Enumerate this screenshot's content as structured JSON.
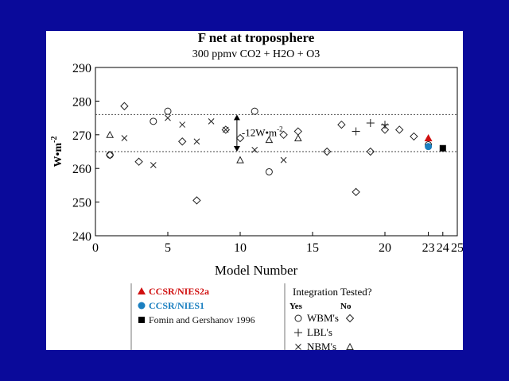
{
  "colors": {
    "slide_background": "#0a0a9a",
    "panel": "#ffffff",
    "ccsr_nies2a": "#d01010",
    "ccsr_nies1": "#1a7fc0",
    "fomin": "#000000",
    "marker": "#222222"
  },
  "chart_data": {
    "type": "scatter",
    "title": "F net at troposphere",
    "subtitle": "300 ppmv CO2 + H2O + O3",
    "xlabel": "Model Number",
    "ylabel_main": "W•m",
    "ylabel_exp": "-2",
    "xlim": [
      0,
      25
    ],
    "ylim": [
      240,
      290
    ],
    "x_ticks": [
      0,
      5,
      10,
      15,
      20,
      23,
      24,
      25
    ],
    "y_ticks": [
      240,
      250,
      260,
      270,
      280,
      290
    ],
    "grid": false,
    "reference_lines": [
      276,
      265
    ],
    "range_annotation": {
      "text": "-12W•m",
      "exp": "-2",
      "x": 9.5,
      "y_from": 276,
      "y_to": 265
    },
    "series": [
      {
        "name": "WBM's",
        "integration_tested": "Yes",
        "symbol": "circle",
        "points": [
          [
            1,
            264
          ],
          [
            4,
            274
          ],
          [
            5,
            277
          ],
          [
            11,
            277
          ],
          [
            12,
            259
          ],
          [
            23,
            267
          ]
        ]
      },
      {
        "name": "WBM's",
        "integration_tested": "No",
        "symbol": "diamond",
        "points": [
          [
            1,
            264
          ],
          [
            2,
            278.5
          ],
          [
            3,
            262
          ],
          [
            6,
            268
          ],
          [
            7,
            250.5
          ],
          [
            9,
            271.5
          ],
          [
            10,
            269
          ],
          [
            13,
            270
          ],
          [
            14,
            271
          ],
          [
            16,
            265
          ],
          [
            17,
            273
          ],
          [
            18,
            253
          ],
          [
            19,
            265
          ],
          [
            20,
            271.5
          ],
          [
            21,
            271.5
          ],
          [
            22,
            269.5
          ]
        ]
      },
      {
        "name": "LBL's",
        "integration_tested": "Yes",
        "symbol": "plus",
        "points": [
          [
            18,
            271
          ],
          [
            19,
            273.5
          ],
          [
            20,
            273
          ]
        ]
      },
      {
        "name": "NBM's",
        "integration_tested": "Yes",
        "symbol": "x",
        "points": [
          [
            2,
            269
          ],
          [
            4,
            261
          ],
          [
            5,
            275
          ],
          [
            6,
            273
          ],
          [
            7,
            268
          ],
          [
            8,
            274
          ],
          [
            9,
            271.5
          ],
          [
            11,
            265.5
          ],
          [
            13,
            262.5
          ],
          [
            20,
            272.5
          ]
        ]
      },
      {
        "name": "NBM's",
        "integration_tested": "No",
        "symbol": "triangle",
        "points": [
          [
            1,
            270
          ],
          [
            10,
            262.5
          ],
          [
            12,
            268.5
          ],
          [
            14,
            269
          ]
        ]
      },
      {
        "name": "CCSR/NIES2a",
        "symbol": "filled-triangle",
        "color": "#d01010",
        "points": [
          [
            23,
            269
          ]
        ]
      },
      {
        "name": "CCSR/NIES1",
        "symbol": "filled-circle",
        "color": "#1a7fc0",
        "points": [
          [
            23,
            266.5
          ]
        ]
      },
      {
        "name": "Fomin and Gershanov 1996",
        "symbol": "filled-square",
        "color": "#000000",
        "points": [
          [
            24,
            266
          ]
        ]
      }
    ]
  },
  "legend": {
    "named_models": [
      {
        "label": "CCSR/NIES2a",
        "icon": "filled-triangle-icon",
        "color": "#d01010"
      },
      {
        "label": "CCSR/NIES1",
        "icon": "filled-circle-icon",
        "color": "#1a7fc0"
      },
      {
        "label": "Fomin and Gershanov 1996",
        "icon": "filled-square-icon",
        "color": "#000000"
      }
    ],
    "integration_title": "Integration Tested?",
    "yes_label": "Yes",
    "no_label": "No",
    "groups": [
      {
        "label": "WBM's",
        "yes_icon": "circle-icon",
        "no_icon": "diamond-icon"
      },
      {
        "label": "LBL's",
        "yes_icon": "plus-icon",
        "no_icon": ""
      },
      {
        "label": "NBM's",
        "yes_icon": "x-icon",
        "no_icon": "triangle-icon"
      }
    ]
  }
}
